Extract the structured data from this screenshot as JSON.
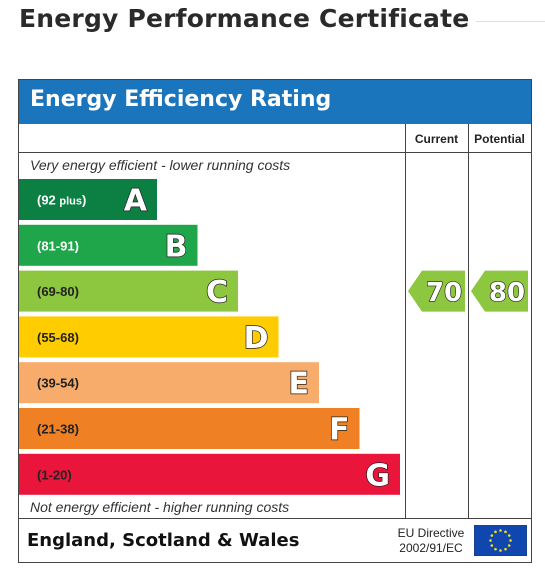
{
  "page": {
    "title": "Energy Performance Certificate"
  },
  "certificate": {
    "header": "Energy Efficiency Rating",
    "header_color": "#1b75bc",
    "columns": {
      "current": "Current",
      "potential": "Potential"
    },
    "top_note": "Very energy efficient - lower running costs",
    "bottom_note": "Not energy efficient - higher running costs",
    "footer": {
      "country": "England, Scotland & Wales",
      "directive_line1": "EU Directive",
      "directive_line2": "2002/91/EC",
      "flag_icon": "eu-flag-icon"
    }
  },
  "chart_data": {
    "type": "bar",
    "title": "Energy Efficiency Rating",
    "categories": [
      "A",
      "B",
      "C",
      "D",
      "E",
      "F",
      "G"
    ],
    "bands": [
      {
        "letter": "A",
        "range": "(92 plus)",
        "min": 92,
        "max": null,
        "color": "#0c8043"
      },
      {
        "letter": "B",
        "range": "(81-91)",
        "min": 81,
        "max": 91,
        "color": "#1fa54a"
      },
      {
        "letter": "C",
        "range": "(69-80)",
        "min": 69,
        "max": 80,
        "color": "#8dc63f"
      },
      {
        "letter": "D",
        "range": "(55-68)",
        "min": 55,
        "max": 68,
        "color": "#ffcc00"
      },
      {
        "letter": "E",
        "range": "(39-54)",
        "min": 39,
        "max": 54,
        "color": "#f7ac6b"
      },
      {
        "letter": "F",
        "range": "(21-38)",
        "min": 21,
        "max": 38,
        "color": "#ef8023"
      },
      {
        "letter": "G",
        "range": "(1-20)",
        "min": 1,
        "max": 20,
        "color": "#e9153b"
      }
    ],
    "series": [
      {
        "name": "Current",
        "value": 70,
        "band": "C",
        "color": "#8dc63f"
      },
      {
        "name": "Potential",
        "value": 80,
        "band": "C",
        "color": "#8dc63f"
      }
    ]
  }
}
